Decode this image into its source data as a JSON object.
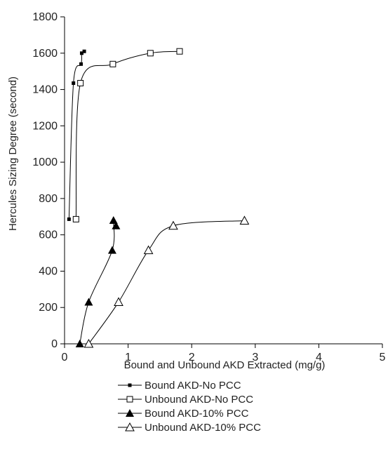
{
  "chart_data": {
    "type": "scatter",
    "title": "",
    "xlabel": "Bound and Unbound AKD Extracted (mg/g)",
    "ylabel": "Hercules Sizing Degree (second)",
    "xlim": [
      0,
      5
    ],
    "ylim": [
      0,
      1800
    ],
    "x_ticks": [
      "0",
      "1",
      "2",
      "3",
      "4",
      "5"
    ],
    "y_ticks": [
      "0",
      "200",
      "400",
      "600",
      "800",
      "1000",
      "1200",
      "1400",
      "1600",
      "1800"
    ],
    "grid": false,
    "legend_position": "bottom",
    "series": [
      {
        "name": "Bound AKD-No PCC",
        "marker": "small-filled-square",
        "color": "#000000",
        "points": [
          [
            0.07,
            686
          ],
          [
            0.14,
            1435
          ],
          [
            0.26,
            1540
          ],
          [
            0.27,
            1600
          ],
          [
            0.31,
            1610
          ]
        ]
      },
      {
        "name": "Unbound AKD-No PCC",
        "marker": "open-square",
        "color": "#000000",
        "points": [
          [
            0.18,
            686
          ],
          [
            0.25,
            1435
          ],
          [
            0.76,
            1540
          ],
          [
            1.35,
            1600
          ],
          [
            1.81,
            1610
          ]
        ]
      },
      {
        "name": "Bound AKD-10% PCC",
        "marker": "filled-triangle",
        "color": "#000000",
        "points": [
          [
            0.24,
            0
          ],
          [
            0.38,
            230
          ],
          [
            0.75,
            515
          ],
          [
            0.77,
            680
          ],
          [
            0.81,
            650
          ]
        ]
      },
      {
        "name": "Unbound AKD-10% PCC",
        "marker": "open-triangle",
        "color": "#000000",
        "points": [
          [
            0.38,
            0
          ],
          [
            0.85,
            230
          ],
          [
            1.32,
            515
          ],
          [
            1.71,
            650
          ],
          [
            2.83,
            678
          ]
        ]
      }
    ]
  }
}
